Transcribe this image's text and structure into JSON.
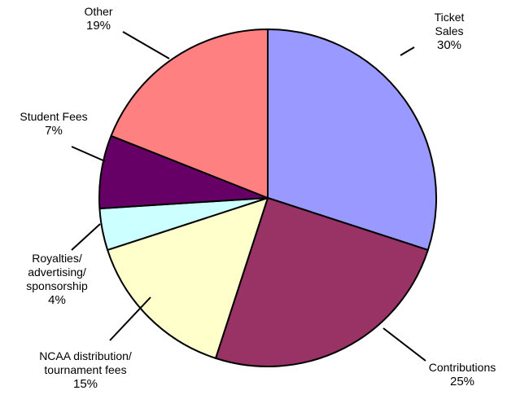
{
  "chart_data": {
    "type": "pie",
    "title": "",
    "legend": "none",
    "categories": [
      "Ticket Sales",
      "Contributions",
      "NCAA distribution/ tournament fees",
      "Royalties/ advertising/ sponsorship",
      "Student Fees",
      "Other"
    ],
    "values": [
      30,
      25,
      15,
      4,
      7,
      19
    ],
    "labels": [
      {
        "lines": [
          "Ticket",
          "Sales"
        ],
        "percent": "30%"
      },
      {
        "lines": [
          "Contributions"
        ],
        "percent": "25%"
      },
      {
        "lines": [
          "NCAA distribution/",
          "tournament fees"
        ],
        "percent": "15%"
      },
      {
        "lines": [
          "Royalties/",
          "advertising/",
          "sponsorship"
        ],
        "percent": "4%"
      },
      {
        "lines": [
          "Student Fees"
        ],
        "percent": "7%"
      },
      {
        "lines": [
          "Other"
        ],
        "percent": "19%"
      }
    ],
    "colors": [
      "#9999ff",
      "#993366",
      "#ffffcc",
      "#ccffff",
      "#660066",
      "#ff8080"
    ]
  }
}
